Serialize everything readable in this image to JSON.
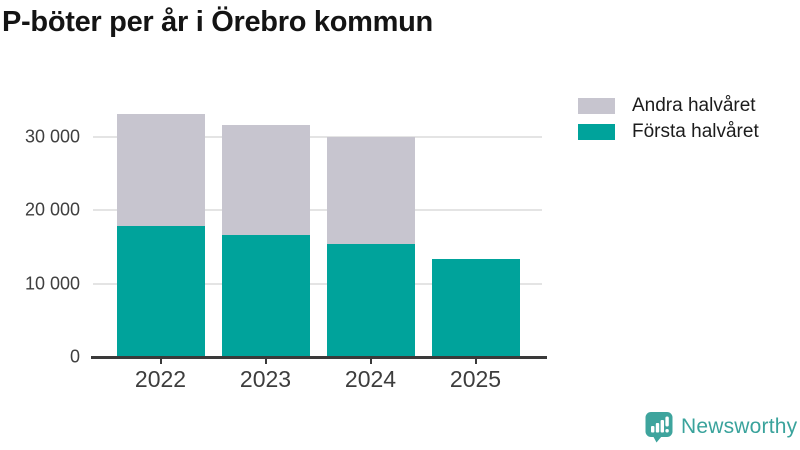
{
  "title": "P-böter per år i Örebro kommun",
  "legend": {
    "items": [
      {
        "label": "Andra halvåret",
        "color": "#c7c5cf"
      },
      {
        "label": "Första halvåret",
        "color": "#00a39b"
      }
    ]
  },
  "chart_data": {
    "type": "bar",
    "stacked": true,
    "title": "P-böter per år i Örebro kommun",
    "categories": [
      "2022",
      "2023",
      "2024",
      "2025"
    ],
    "series": [
      {
        "name": "Första halvåret",
        "color": "#00a39b",
        "values": [
          17800,
          16600,
          15400,
          13300
        ]
      },
      {
        "name": "Andra halvåret",
        "color": "#c7c5cf",
        "values": [
          15300,
          15000,
          14600,
          0
        ]
      }
    ],
    "totals": [
      33100,
      31600,
      30000,
      13300
    ],
    "xlabel": "",
    "ylabel": "",
    "ylim": [
      0,
      34000
    ],
    "yticks": [
      {
        "value": 0,
        "label": "0"
      },
      {
        "value": 10000,
        "label": "10 000"
      },
      {
        "value": 20000,
        "label": "20 000"
      },
      {
        "value": 30000,
        "label": "30 000"
      }
    ],
    "grid": "horizontal",
    "legend_position": "top-right"
  },
  "footer": {
    "brand": "Newsworthy",
    "brand_color": "#3aa39c"
  }
}
